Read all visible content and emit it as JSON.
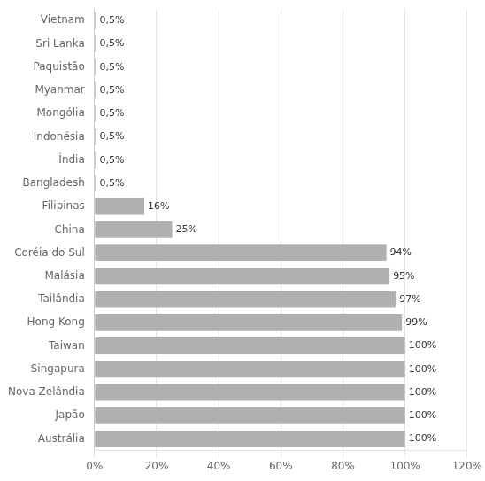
{
  "chart_data": {
    "type": "bar",
    "orientation": "horizontal",
    "categories": [
      "Austrália",
      "Japão",
      "Nova Zelândia",
      "Singapura",
      "Taiwan",
      "Hong Kong",
      "Tailândia",
      "Malásia",
      "Coréia do Sul",
      "China",
      "Filipinas",
      "Bangladesh",
      "Índia",
      "Indonésia",
      "Mongólia",
      "Myanmar",
      "Paquistão",
      "Sri Lanka",
      "Vietnam"
    ],
    "values": [
      100,
      100,
      100,
      100,
      100,
      99,
      97,
      95,
      94,
      25,
      16,
      0.5,
      0.5,
      0.5,
      0.5,
      0.5,
      0.5,
      0.5,
      0.5
    ],
    "value_labels": [
      "100%",
      "100%",
      "100%",
      "100%",
      "100%",
      "99%",
      "97%",
      "95%",
      "94%",
      "25%",
      "16%",
      "0,5%",
      "0,5%",
      "0,5%",
      "0,5%",
      "0,5%",
      "0,5%",
      "0,5%",
      "0,5%"
    ],
    "data_labels": true,
    "color": "#b0b0b0",
    "xlim": [
      0,
      120
    ],
    "xticks": [
      {
        "value": 0,
        "label": "0%"
      },
      {
        "value": 20,
        "label": "20%"
      },
      {
        "value": 40,
        "label": "40%"
      },
      {
        "value": 60,
        "label": "60%"
      },
      {
        "value": 80,
        "label": "80%"
      },
      {
        "value": 100,
        "label": "100%"
      },
      {
        "value": 120,
        "label": "120%"
      }
    ],
    "grid": true
  }
}
